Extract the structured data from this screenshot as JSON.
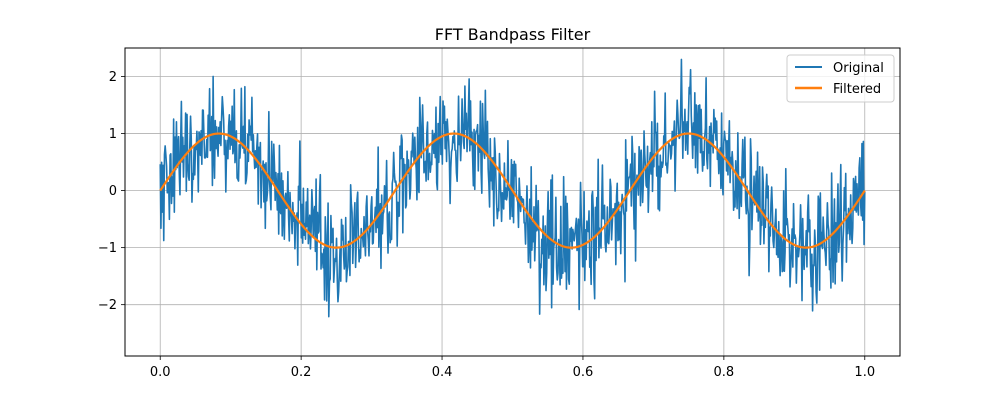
{
  "chart_data": {
    "type": "line",
    "title": "FFT Bandpass Filter",
    "xlabel": "",
    "ylabel": "",
    "xlim": [
      -0.05,
      1.05
    ],
    "ylim": [
      -2.9,
      2.5
    ],
    "x_ticks": [
      0.0,
      0.2,
      0.4,
      0.6,
      0.8,
      1.0
    ],
    "x_tick_labels": [
      "0.0",
      "0.2",
      "0.4",
      "0.6",
      "0.8",
      "1.0"
    ],
    "y_ticks": [
      -2,
      -1,
      0,
      1,
      2
    ],
    "y_tick_labels": [
      "−2",
      "−1",
      "0",
      "1",
      "2"
    ],
    "grid": true,
    "legend_position": "top-right",
    "series": [
      {
        "name": "Original",
        "color": "#1f77b4",
        "n_points": 1000,
        "signal": {
          "amplitude": 1,
          "frequency": 3,
          "noise_amplitude": 0.5
        },
        "y_range": [
          -2.65,
          2.3
        ]
      },
      {
        "name": "Filtered",
        "color": "#ff7f0e",
        "n_points": 1000,
        "signal": {
          "amplitude": 1,
          "frequency": 3
        }
      }
    ]
  }
}
